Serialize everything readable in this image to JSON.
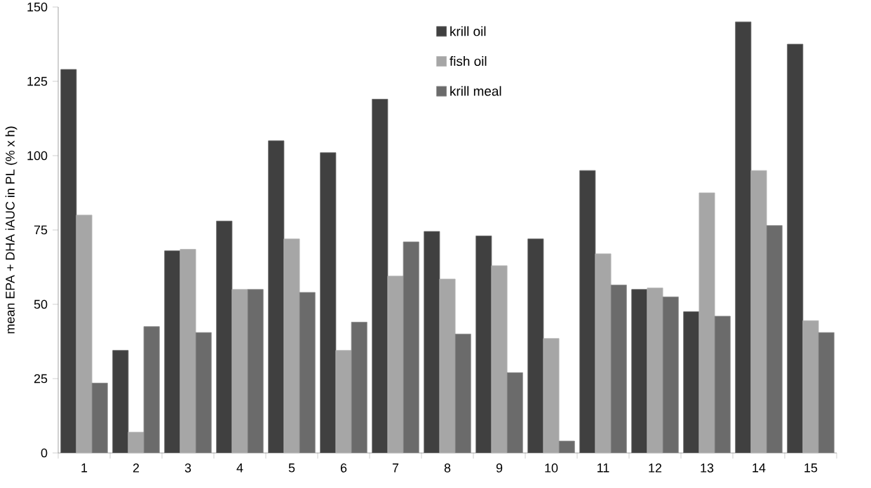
{
  "chart_data": {
    "type": "bar",
    "ylabel": "mean EPA + DHA iAUC in PL (% x h)",
    "categories": [
      "1",
      "2",
      "3",
      "4",
      "5",
      "6",
      "7",
      "8",
      "9",
      "10",
      "11",
      "12",
      "13",
      "14",
      "15"
    ],
    "series": [
      {
        "name": "krill oil",
        "color": "#404040",
        "values": [
          129,
          34.5,
          68,
          78,
          105,
          101,
          119,
          74.5,
          73,
          72,
          95,
          55,
          47.5,
          145,
          137.5
        ]
      },
      {
        "name": "fish oil",
        "color": "#a6a6a6",
        "values": [
          80,
          7,
          68.5,
          55,
          72,
          34.5,
          59.5,
          58.5,
          63,
          38.5,
          67,
          55.5,
          87.5,
          95,
          44.5
        ]
      },
      {
        "name": "krill meal",
        "color": "#6b6b6b",
        "values": [
          23.5,
          42.5,
          40.5,
          55,
          54,
          44,
          71,
          40,
          27,
          4,
          56.5,
          52.5,
          46,
          76.5,
          40.5
        ]
      }
    ],
    "ylim": [
      0,
      150
    ],
    "yticks": [
      0,
      25,
      50,
      75,
      100,
      125,
      150
    ],
    "grid": false,
    "legend": "top"
  }
}
